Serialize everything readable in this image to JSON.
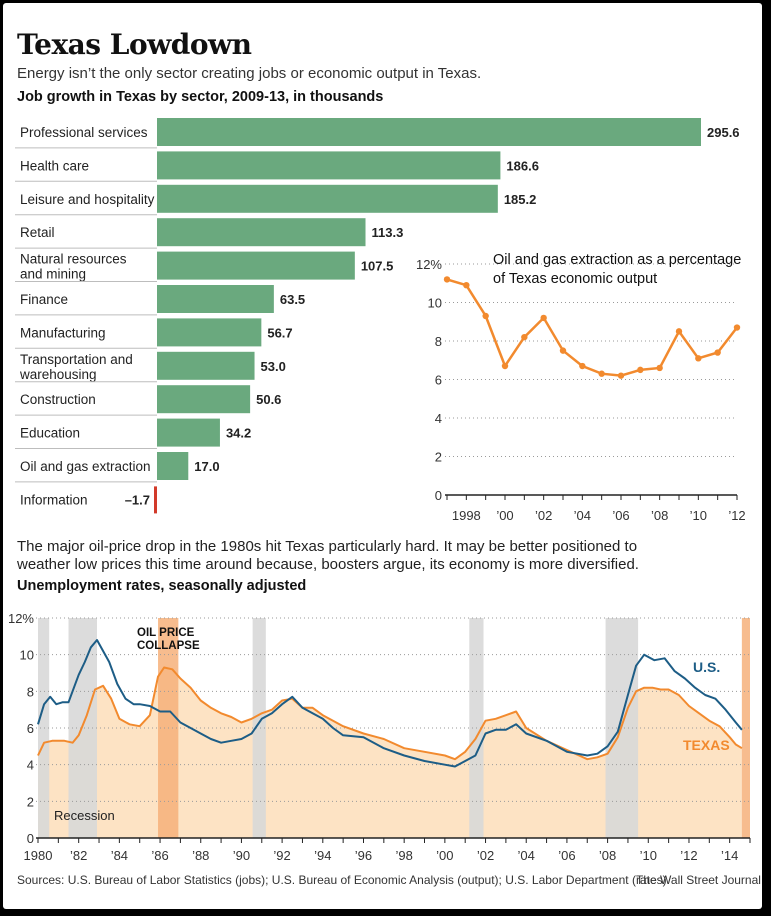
{
  "header": {
    "title": "Texas Lowdown",
    "subtitle": "Energy isn’t the only sector creating jobs or economic output in Texas.",
    "bar_heading": "Job growth in Texas by sector, 2009-13, in thousands"
  },
  "note": {
    "line1": "The major oil-price drop in the 1980s hit Texas particularly hard. It may be better positioned to",
    "line2": "weather low prices this time around because, boosters argue, its economy is more diversified."
  },
  "unemployment_heading": "Unemployment rates, seasonally adjusted",
  "footer": {
    "sources": "Sources: U.S. Bureau of Labor Statistics (jobs); U.S. Bureau of Economic Analysis (output); U.S. Labor Department (rates)",
    "credit": "The Wall Street Journal"
  },
  "colors": {
    "bar": "#6aa97e",
    "negative_bar": "#d23a2a",
    "oil_line": "#f28a2e",
    "us_line": "#1d5d86",
    "texas_line": "#f28a2e",
    "texas_fill": "#fde3c4",
    "recession": "#d8d8d8",
    "collapse": "#f6b07a"
  },
  "chart_data": [
    {
      "type": "bar",
      "orientation": "horizontal",
      "title": "Job growth in Texas by sector, 2009-13, in thousands",
      "categories": [
        [
          "Professional services"
        ],
        [
          "Health care"
        ],
        [
          "Leisure and hospitality"
        ],
        [
          "Retail"
        ],
        [
          "Natural resources",
          "and mining"
        ],
        [
          "Finance"
        ],
        [
          "Manufacturing"
        ],
        [
          "Transportation and",
          "warehousing"
        ],
        [
          "Construction"
        ],
        [
          "Education"
        ],
        [
          "Oil and gas extraction"
        ],
        [
          "Information"
        ]
      ],
      "values": [
        295.6,
        186.6,
        185.2,
        113.3,
        107.5,
        63.5,
        56.7,
        53.0,
        50.6,
        34.2,
        17.0,
        -1.7
      ],
      "value_labels": [
        "295.6",
        "186.6",
        "185.2",
        "113.3",
        "107.5",
        "63.5",
        "56.7",
        "53.0",
        "50.6",
        "34.2",
        "17.0",
        "–1.7"
      ]
    },
    {
      "type": "line",
      "title": "Oil and gas extraction as a percentage of Texas economic output",
      "title_lines": [
        "Oil and gas extraction as a percentage",
        "of Texas economic output"
      ],
      "x": [
        1997,
        1998,
        1999,
        2000,
        2001,
        2002,
        2003,
        2004,
        2005,
        2006,
        2007,
        2008,
        2009,
        2010,
        2011,
        2012
      ],
      "values": [
        11.2,
        10.9,
        9.3,
        6.7,
        8.2,
        9.2,
        7.5,
        6.7,
        6.3,
        6.2,
        6.5,
        6.6,
        8.5,
        7.1,
        7.4,
        8.7
      ],
      "ylim": [
        0,
        12
      ],
      "y_ticks": [
        0,
        2,
        4,
        6,
        8,
        10,
        12
      ],
      "y_tick_labels": [
        "0",
        "2",
        "4",
        "6",
        "8",
        "10",
        "12%"
      ],
      "x_ticks": [
        1998,
        2000,
        2002,
        2004,
        2006,
        2008,
        2010,
        2012
      ],
      "x_tick_labels": [
        "1998",
        "’00",
        "’02",
        "’04",
        "’06",
        "’08",
        "’10",
        "’12"
      ]
    },
    {
      "type": "line",
      "title": "Unemployment rates, seasonally adjusted",
      "ylim": [
        0,
        12
      ],
      "xlim": [
        1980,
        2015
      ],
      "y_ticks": [
        0,
        2,
        4,
        6,
        8,
        10,
        12
      ],
      "y_tick_labels": [
        "0",
        "2",
        "4",
        "6",
        "8",
        "10",
        "12%"
      ],
      "x_ticks": [
        1980,
        1982,
        1984,
        1986,
        1988,
        1990,
        1992,
        1994,
        1996,
        1998,
        2000,
        2002,
        2004,
        2006,
        2008,
        2010,
        2012,
        2014
      ],
      "x_tick_labels": [
        "1980",
        "’82",
        "’84",
        "’86",
        "’88",
        "’90",
        "’92",
        "’94",
        "’96",
        "’98",
        "’00",
        "’02",
        "’04",
        "’06",
        "’08",
        "’10",
        "’12",
        "’14"
      ],
      "series": [
        {
          "name": "U.S.",
          "x": [
            1980.0,
            1980.3,
            1980.6,
            1980.9,
            1981.2,
            1981.5,
            1981.8,
            1982.0,
            1982.3,
            1982.6,
            1982.9,
            1983.2,
            1983.5,
            1983.9,
            1984.3,
            1984.7,
            1985.0,
            1985.5,
            1986.0,
            1986.5,
            1987.0,
            1987.5,
            1988.0,
            1988.5,
            1989.0,
            1989.5,
            1990.0,
            1990.5,
            1991.0,
            1991.5,
            1992.0,
            1992.5,
            1993.0,
            1993.5,
            1994.0,
            1994.5,
            1995.0,
            1996.0,
            1997.0,
            1998.0,
            1999.0,
            2000.0,
            2000.5,
            2001.0,
            2001.5,
            2002.0,
            2002.5,
            2003.0,
            2003.5,
            2004.0,
            2005.0,
            2006.0,
            2007.0,
            2007.5,
            2008.0,
            2008.5,
            2009.0,
            2009.4,
            2009.8,
            2010.3,
            2010.8,
            2011.3,
            2011.8,
            2012.3,
            2012.8,
            2013.3,
            2013.8,
            2014.3,
            2014.6
          ],
          "values": [
            6.2,
            7.3,
            7.7,
            7.3,
            7.4,
            7.4,
            8.3,
            8.9,
            9.6,
            10.4,
            10.8,
            10.2,
            9.6,
            8.4,
            7.6,
            7.3,
            7.3,
            7.2,
            6.9,
            6.9,
            6.3,
            6.0,
            5.7,
            5.4,
            5.2,
            5.3,
            5.4,
            5.7,
            6.5,
            6.8,
            7.3,
            7.7,
            7.1,
            6.8,
            6.5,
            6.0,
            5.6,
            5.5,
            4.9,
            4.5,
            4.2,
            4.0,
            3.9,
            4.2,
            4.5,
            5.7,
            5.9,
            5.9,
            6.2,
            5.7,
            5.3,
            4.7,
            4.5,
            4.6,
            5.0,
            5.8,
            7.8,
            9.4,
            10.0,
            9.7,
            9.8,
            9.1,
            8.7,
            8.2,
            7.8,
            7.6,
            7.0,
            6.3,
            5.9
          ]
        },
        {
          "name": "TEXAS",
          "x": [
            1980.0,
            1980.3,
            1980.7,
            1981.0,
            1981.3,
            1981.7,
            1982.0,
            1982.4,
            1982.8,
            1983.2,
            1983.6,
            1984.0,
            1984.5,
            1985.0,
            1985.5,
            1985.9,
            1986.2,
            1986.6,
            1987.0,
            1987.5,
            1988.0,
            1988.5,
            1989.0,
            1989.5,
            1990.0,
            1990.5,
            1991.0,
            1991.5,
            1992.0,
            1992.5,
            1993.0,
            1993.5,
            1994.0,
            1994.5,
            1995.0,
            1996.0,
            1997.0,
            1998.0,
            1999.0,
            2000.0,
            2000.5,
            2001.0,
            2001.5,
            2002.0,
            2002.5,
            2003.0,
            2003.5,
            2004.0,
            2005.0,
            2006.0,
            2007.0,
            2007.5,
            2008.0,
            2008.5,
            2009.0,
            2009.4,
            2009.8,
            2010.2,
            2010.6,
            2011.0,
            2011.5,
            2012.0,
            2012.5,
            2013.0,
            2013.5,
            2014.0,
            2014.3,
            2014.6
          ],
          "values": [
            4.5,
            5.2,
            5.3,
            5.3,
            5.3,
            5.2,
            5.6,
            6.7,
            8.1,
            8.3,
            7.6,
            6.5,
            6.2,
            6.1,
            6.7,
            8.8,
            9.3,
            9.2,
            8.7,
            8.2,
            7.5,
            7.1,
            6.8,
            6.6,
            6.3,
            6.5,
            6.8,
            7.0,
            7.5,
            7.6,
            7.1,
            7.1,
            6.7,
            6.4,
            6.1,
            5.7,
            5.4,
            4.9,
            4.7,
            4.5,
            4.3,
            4.7,
            5.4,
            6.4,
            6.5,
            6.7,
            6.9,
            6.0,
            5.3,
            4.8,
            4.3,
            4.4,
            4.6,
            5.5,
            7.1,
            8.0,
            8.2,
            8.2,
            8.1,
            8.1,
            7.8,
            7.2,
            6.8,
            6.4,
            6.1,
            5.5,
            5.1,
            4.9
          ]
        }
      ],
      "shaded_periods": [
        {
          "label": "Recession",
          "start": 1980.0,
          "end": 1980.55
        },
        {
          "label": "Recession",
          "start": 1981.5,
          "end": 1982.9
        },
        {
          "label": "OIL PRICE COLLAPSE",
          "start": 1985.9,
          "end": 1986.9
        },
        {
          "label": "Recession",
          "start": 1990.55,
          "end": 1991.2
        },
        {
          "label": "Recession",
          "start": 2001.2,
          "end": 2001.9
        },
        {
          "label": "Recession",
          "start": 2007.9,
          "end": 2009.5
        },
        {
          "label": "",
          "start": 2014.6,
          "end": 2015.0
        }
      ],
      "annotations": {
        "oil_price_collapse": [
          "OIL PRICE",
          "COLLAPSE"
        ],
        "recession": "Recession",
        "us_label": "U.S.",
        "texas_label": "TEXAS"
      }
    }
  ]
}
